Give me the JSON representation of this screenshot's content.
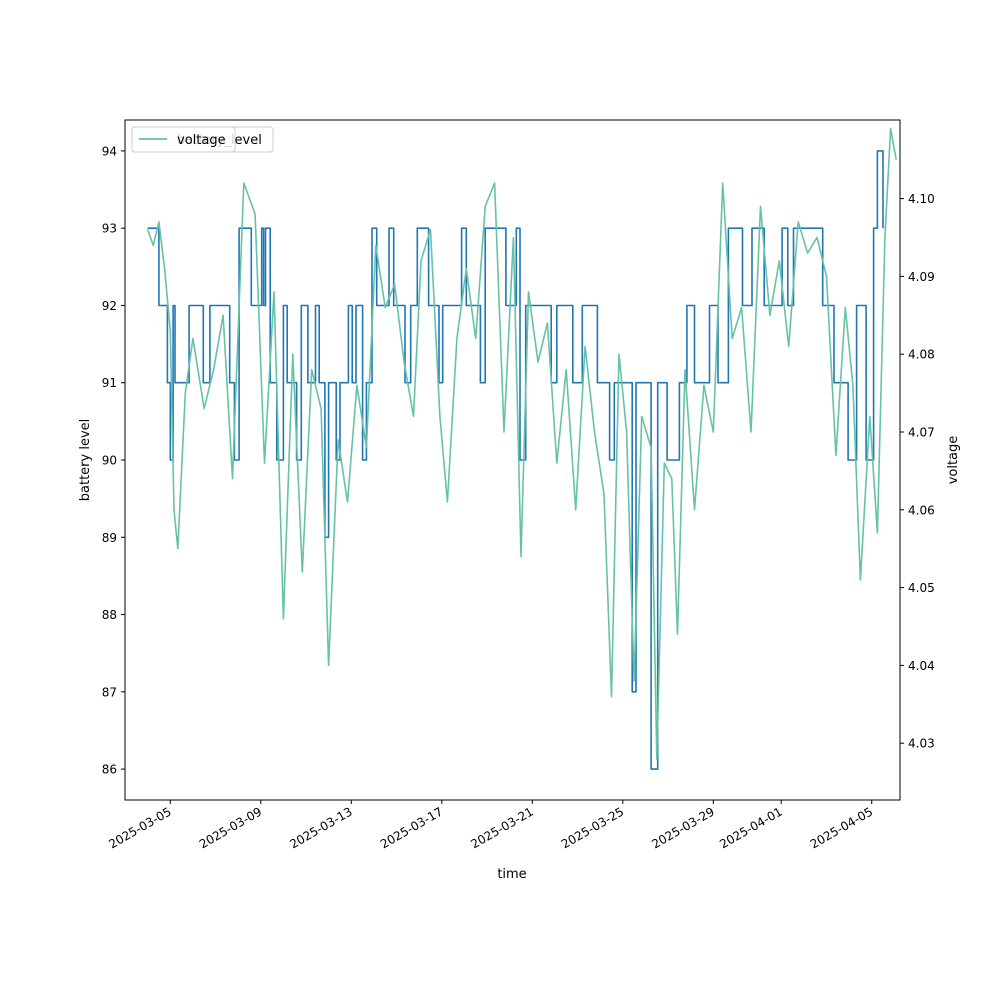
{
  "chart_data": {
    "type": "line",
    "xlabel": "time",
    "ylabel": "battery level",
    "y2label": "voltage",
    "xlim": [
      "2025-03-03T00:00",
      "2025-04-06T06:00"
    ],
    "ylim": [
      85.6,
      94.4
    ],
    "y2lim": [
      4.0227,
      4.1101
    ],
    "x_ticks": [
      {
        "date": "2025-03-05",
        "label": "2025-03-05"
      },
      {
        "date": "2025-03-09",
        "label": "2025-03-09"
      },
      {
        "date": "2025-03-13",
        "label": "2025-03-13"
      },
      {
        "date": "2025-03-17",
        "label": "2025-03-17"
      },
      {
        "date": "2025-03-21",
        "label": "2025-03-21"
      },
      {
        "date": "2025-03-25",
        "label": "2025-03-25"
      },
      {
        "date": "2025-03-29",
        "label": "2025-03-29"
      },
      {
        "date": "2025-04-01",
        "label": "2025-04-01"
      },
      {
        "date": "2025-04-05",
        "label": "2025-04-05"
      }
    ],
    "y_ticks": [
      86,
      87,
      88,
      89,
      90,
      91,
      92,
      93,
      94
    ],
    "y2_ticks": [
      4.03,
      4.04,
      4.05,
      4.06,
      4.07,
      4.08,
      4.09,
      4.1
    ],
    "legend": {
      "position": "upper-left",
      "entries": [
        "battery_level",
        "voltage"
      ]
    },
    "series": [
      {
        "name": "battery_level",
        "axis": "left",
        "color": "#1f77b4",
        "step": true,
        "points": [
          [
            "2025-03-04T00:00",
            93
          ],
          [
            "2025-03-04T12:00",
            92
          ],
          [
            "2025-03-04T21:00",
            91
          ],
          [
            "2025-03-05T00:00",
            90
          ],
          [
            "2025-03-05T03:00",
            92
          ],
          [
            "2025-03-05T05:00",
            91
          ],
          [
            "2025-03-05T20:00",
            92
          ],
          [
            "2025-03-06T11:00",
            91
          ],
          [
            "2025-03-06T18:00",
            92
          ],
          [
            "2025-03-07T15:00",
            91
          ],
          [
            "2025-03-07T20:00",
            90
          ],
          [
            "2025-03-08T01:00",
            93
          ],
          [
            "2025-03-08T14:00",
            92
          ],
          [
            "2025-03-09T01:00",
            93
          ],
          [
            "2025-03-09T03:00",
            92
          ],
          [
            "2025-03-09T05:00",
            93
          ],
          [
            "2025-03-09T10:00",
            91
          ],
          [
            "2025-03-09T17:00",
            90
          ],
          [
            "2025-03-10T00:00",
            92
          ],
          [
            "2025-03-10T04:00",
            91
          ],
          [
            "2025-03-10T14:00",
            90
          ],
          [
            "2025-03-10T19:00",
            92
          ],
          [
            "2025-03-11T02:00",
            91
          ],
          [
            "2025-03-11T10:00",
            92
          ],
          [
            "2025-03-11T14:00",
            91
          ],
          [
            "2025-03-11T20:00",
            89
          ],
          [
            "2025-03-12T00:00",
            91
          ],
          [
            "2025-03-12T08:00",
            90
          ],
          [
            "2025-03-12T12:00",
            91
          ],
          [
            "2025-03-12T21:00",
            92
          ],
          [
            "2025-03-13T01:00",
            91
          ],
          [
            "2025-03-13T05:00",
            92
          ],
          [
            "2025-03-13T12:00",
            90
          ],
          [
            "2025-03-13T16:00",
            91
          ],
          [
            "2025-03-13T22:00",
            93
          ],
          [
            "2025-03-14T03:00",
            92
          ],
          [
            "2025-03-14T16:00",
            93
          ],
          [
            "2025-03-14T21:00",
            92
          ],
          [
            "2025-03-15T09:00",
            91
          ],
          [
            "2025-03-15T15:00",
            92
          ],
          [
            "2025-03-15T22:00",
            93
          ],
          [
            "2025-03-16T10:00",
            92
          ],
          [
            "2025-03-16T21:00",
            91
          ],
          [
            "2025-03-17T01:00",
            92
          ],
          [
            "2025-03-17T21:00",
            93
          ],
          [
            "2025-03-18T02:00",
            92
          ],
          [
            "2025-03-18T17:00",
            91
          ],
          [
            "2025-03-18T22:00",
            93
          ],
          [
            "2025-03-19T20:00",
            92
          ],
          [
            "2025-03-20T07:00",
            93
          ],
          [
            "2025-03-20T11:00",
            90
          ],
          [
            "2025-03-20T17:00",
            92
          ],
          [
            "2025-03-21T20:00",
            91
          ],
          [
            "2025-03-22T02:00",
            92
          ],
          [
            "2025-03-22T19:00",
            91
          ],
          [
            "2025-03-23T05:00",
            92
          ],
          [
            "2025-03-23T21:00",
            91
          ],
          [
            "2025-03-24T10:00",
            90
          ],
          [
            "2025-03-24T15:00",
            91
          ],
          [
            "2025-03-25T10:00",
            87
          ],
          [
            "2025-03-25T14:00",
            91
          ],
          [
            "2025-03-26T06:00",
            86
          ],
          [
            "2025-03-26T13:00",
            91
          ],
          [
            "2025-03-26T23:00",
            90
          ],
          [
            "2025-03-27T12:00",
            91
          ],
          [
            "2025-03-27T20:00",
            92
          ],
          [
            "2025-03-28T04:00",
            91
          ],
          [
            "2025-03-28T20:00",
            92
          ],
          [
            "2025-03-29T05:00",
            91
          ],
          [
            "2025-03-29T16:00",
            93
          ],
          [
            "2025-03-30T07:00",
            92
          ],
          [
            "2025-03-30T17:00",
            93
          ],
          [
            "2025-03-31T06:00",
            92
          ],
          [
            "2025-04-01T01:00",
            93
          ],
          [
            "2025-04-01T07:00",
            92
          ],
          [
            "2025-04-01T13:00",
            93
          ],
          [
            "2025-04-02T20:00",
            92
          ],
          [
            "2025-04-03T08:00",
            91
          ],
          [
            "2025-04-03T23:00",
            90
          ],
          [
            "2025-04-04T08:00",
            92
          ],
          [
            "2025-04-04T18:00",
            90
          ],
          [
            "2025-04-05T02:00",
            93
          ],
          [
            "2025-04-05T06:00",
            94
          ],
          [
            "2025-04-05T12:00",
            93
          ]
        ]
      },
      {
        "name": "voltage",
        "axis": "right",
        "color": "#66c2a5",
        "step": false,
        "points": [
          [
            "2025-03-04T00:00",
            4.096
          ],
          [
            "2025-03-04T06:00",
            4.094
          ],
          [
            "2025-03-04T12:00",
            4.097
          ],
          [
            "2025-03-04T18:00",
            4.091
          ],
          [
            "2025-03-05T00:00",
            4.083
          ],
          [
            "2025-03-05T04:00",
            4.06
          ],
          [
            "2025-03-05T08:00",
            4.055
          ],
          [
            "2025-03-05T16:00",
            4.075
          ],
          [
            "2025-03-06T00:00",
            4.082
          ],
          [
            "2025-03-06T12:00",
            4.073
          ],
          [
            "2025-03-06T22:00",
            4.078
          ],
          [
            "2025-03-07T08:00",
            4.085
          ],
          [
            "2025-03-07T18:00",
            4.064
          ],
          [
            "2025-03-08T06:00",
            4.102
          ],
          [
            "2025-03-08T18:00",
            4.098
          ],
          [
            "2025-03-09T04:00",
            4.066
          ],
          [
            "2025-03-09T14:00",
            4.088
          ],
          [
            "2025-03-10T00:00",
            4.046
          ],
          [
            "2025-03-10T10:00",
            4.08
          ],
          [
            "2025-03-10T20:00",
            4.052
          ],
          [
            "2025-03-11T06:00",
            4.078
          ],
          [
            "2025-03-11T16:00",
            4.073
          ],
          [
            "2025-03-12T00:00",
            4.04
          ],
          [
            "2025-03-12T10:00",
            4.069
          ],
          [
            "2025-03-12T20:00",
            4.061
          ],
          [
            "2025-03-13T06:00",
            4.076
          ],
          [
            "2025-03-13T16:00",
            4.068
          ],
          [
            "2025-03-14T02:00",
            4.094
          ],
          [
            "2025-03-14T12:00",
            4.086
          ],
          [
            "2025-03-14T22:00",
            4.089
          ],
          [
            "2025-03-15T08:00",
            4.079
          ],
          [
            "2025-03-15T18:00",
            4.072
          ],
          [
            "2025-03-16T02:00",
            4.092
          ],
          [
            "2025-03-16T12:00",
            4.096
          ],
          [
            "2025-03-16T22:00",
            4.072
          ],
          [
            "2025-03-17T06:00",
            4.061
          ],
          [
            "2025-03-17T16:00",
            4.082
          ],
          [
            "2025-03-18T02:00",
            4.091
          ],
          [
            "2025-03-18T12:00",
            4.082
          ],
          [
            "2025-03-18T22:00",
            4.099
          ],
          [
            "2025-03-19T08:00",
            4.102
          ],
          [
            "2025-03-19T18:00",
            4.07
          ],
          [
            "2025-03-20T04:00",
            4.095
          ],
          [
            "2025-03-20T12:00",
            4.054
          ],
          [
            "2025-03-20T20:00",
            4.088
          ],
          [
            "2025-03-21T06:00",
            4.079
          ],
          [
            "2025-03-21T16:00",
            4.084
          ],
          [
            "2025-03-22T02:00",
            4.066
          ],
          [
            "2025-03-22T12:00",
            4.078
          ],
          [
            "2025-03-22T22:00",
            4.06
          ],
          [
            "2025-03-23T08:00",
            4.081
          ],
          [
            "2025-03-23T18:00",
            4.07
          ],
          [
            "2025-03-24T04:00",
            4.062
          ],
          [
            "2025-03-24T12:00",
            4.036
          ],
          [
            "2025-03-24T20:00",
            4.08
          ],
          [
            "2025-03-25T04:00",
            4.07
          ],
          [
            "2025-03-25T12:00",
            4.038
          ],
          [
            "2025-03-25T20:00",
            4.072
          ],
          [
            "2025-03-26T06:00",
            4.068
          ],
          [
            "2025-03-26T12:00",
            4.028
          ],
          [
            "2025-03-26T20:00",
            4.066
          ],
          [
            "2025-03-27T04:00",
            4.064
          ],
          [
            "2025-03-27T10:00",
            4.044
          ],
          [
            "2025-03-27T18:00",
            4.078
          ],
          [
            "2025-03-28T04:00",
            4.06
          ],
          [
            "2025-03-28T14:00",
            4.076
          ],
          [
            "2025-03-29T00:00",
            4.07
          ],
          [
            "2025-03-29T10:00",
            4.102
          ],
          [
            "2025-03-29T20:00",
            4.082
          ],
          [
            "2025-03-30T06:00",
            4.086
          ],
          [
            "2025-03-30T16:00",
            4.07
          ],
          [
            "2025-03-31T02:00",
            4.099
          ],
          [
            "2025-03-31T12:00",
            4.085
          ],
          [
            "2025-03-31T22:00",
            4.092
          ],
          [
            "2025-04-01T08:00",
            4.081
          ],
          [
            "2025-04-01T18:00",
            4.097
          ],
          [
            "2025-04-02T04:00",
            4.093
          ],
          [
            "2025-04-02T14:00",
            4.095
          ],
          [
            "2025-04-03T00:00",
            4.09
          ],
          [
            "2025-04-03T10:00",
            4.067
          ],
          [
            "2025-04-03T20:00",
            4.086
          ],
          [
            "2025-04-04T04:00",
            4.076
          ],
          [
            "2025-04-04T12:00",
            4.051
          ],
          [
            "2025-04-04T22:00",
            4.072
          ],
          [
            "2025-04-05T06:00",
            4.057
          ],
          [
            "2025-04-05T14:00",
            4.095
          ],
          [
            "2025-04-05T20:00",
            4.109
          ],
          [
            "2025-04-06T02:00",
            4.105
          ]
        ]
      }
    ]
  }
}
